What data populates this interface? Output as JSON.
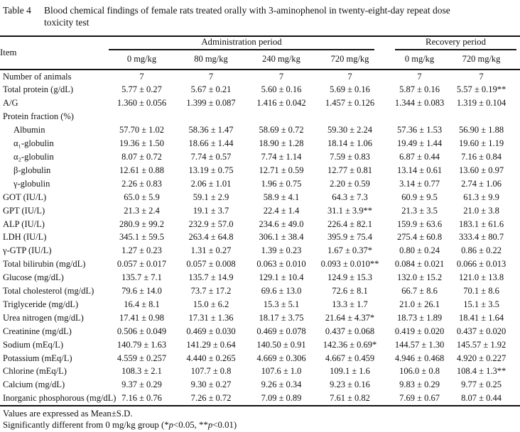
{
  "table": {
    "label": "Table 4",
    "title": "Blood chemical findings of female rats treated orally with 3-aminophenol in twenty-eight-day repeat dose",
    "title_line2": "toxicity test",
    "item_header": "Item",
    "group_headers": [
      {
        "label": "Administration period",
        "span": 4
      },
      {
        "label": "Recovery period",
        "span": 2
      }
    ],
    "dose_headers": [
      "0 mg/kg",
      "80 mg/kg",
      "240 mg/kg",
      "720 mg/kg",
      "0 mg/kg",
      "720 mg/kg"
    ],
    "rows": [
      {
        "item": "Number of animals",
        "indent": false,
        "values": [
          "7",
          "7",
          "7",
          "7",
          "7",
          "7"
        ]
      },
      {
        "item": "Total protein (g/dL)",
        "indent": false,
        "values": [
          "5.77 ± 0.27",
          "5.67 ± 0.21",
          "5.60 ± 0.16",
          "5.69 ± 0.16",
          "5.87 ± 0.16",
          "5.57 ± 0.19**"
        ]
      },
      {
        "item": "A/G",
        "indent": false,
        "values": [
          "1.360 ± 0.056",
          "1.399 ± 0.087",
          "1.416 ± 0.042",
          "1.457 ± 0.126",
          "1.344 ± 0.083",
          "1.319 ± 0.104"
        ]
      },
      {
        "item": "Protein fraction (%)",
        "indent": false,
        "section": true,
        "values": [
          "",
          "",
          "",
          "",
          "",
          ""
        ]
      },
      {
        "item": "Albumin",
        "indent": true,
        "values": [
          "57.70 ± 1.02",
          "58.36 ± 1.47",
          "58.69 ± 0.72",
          "59.30 ± 2.24",
          "57.36 ± 1.53",
          "56.90 ± 1.88"
        ]
      },
      {
        "item": "α₁-globulin",
        "indent": true,
        "values": [
          "19.36 ± 1.50",
          "18.66 ± 1.44",
          "18.90 ± 1.28",
          "18.14 ± 1.06",
          "19.49 ± 1.44",
          "19.60 ± 1.19"
        ]
      },
      {
        "item": "α₂-globulin",
        "indent": true,
        "values": [
          "8.07 ± 0.72",
          "7.74 ± 0.57",
          "7.74 ± 1.14",
          "7.59 ± 0.83",
          "6.87 ± 0.44",
          "7.16 ± 0.84"
        ]
      },
      {
        "item": "β-globulin",
        "indent": true,
        "values": [
          "12.61 ± 0.88",
          "13.19 ± 0.75",
          "12.71 ± 0.59",
          "12.77 ± 0.81",
          "13.14 ± 0.61",
          "13.60 ± 0.97"
        ]
      },
      {
        "item": "γ-globulin",
        "indent": true,
        "values": [
          "2.26 ± 0.83",
          "2.06 ± 1.01",
          "1.96 ± 0.75",
          "2.20 ± 0.59",
          "3.14 ± 0.77",
          "2.74 ± 1.06"
        ]
      },
      {
        "item": "GOT (IU/L)",
        "indent": false,
        "values": [
          "65.0 ± 5.9",
          "59.1 ± 2.9",
          "58.9 ± 4.1",
          "64.3 ± 7.3",
          "60.9 ± 9.5",
          "61.3 ± 9.9"
        ]
      },
      {
        "item": "GPT (IU/L)",
        "indent": false,
        "values": [
          "21.3 ± 2.4",
          "19.1 ± 3.7",
          "22.4 ± 1.4",
          "31.1 ± 3.9**",
          "21.3 ± 3.5",
          "21.0 ± 3.8"
        ]
      },
      {
        "item": "ALP (IU/L)",
        "indent": false,
        "values": [
          "280.9 ± 99.2",
          "232.9 ± 57.0",
          "234.6 ± 49.0",
          "226.4 ± 82.1",
          "159.9 ± 63.6",
          "183.1 ± 61.6"
        ]
      },
      {
        "item": "LDH (IU/L)",
        "indent": false,
        "values": [
          "345.1 ± 59.5",
          "263.4 ± 64.8",
          "306.1 ± 38.4",
          "395.9 ± 75.4",
          "275.4 ± 60.8",
          "333.4 ± 80.7"
        ]
      },
      {
        "item": "γ-GTP (IU/L)",
        "indent": false,
        "values": [
          "1.27 ± 0.23",
          "1.31 ± 0.27",
          "1.39 ± 0.23",
          "1.67 ± 0.37*",
          "0.80 ± 0.24",
          "0.86 ± 0.22"
        ]
      },
      {
        "item": "Total bilirubin (mg/dL)",
        "indent": false,
        "values": [
          "0.057 ± 0.017",
          "0.057 ± 0.008",
          "0.063 ± 0.010",
          "0.093 ± 0.010**",
          "0.084 ± 0.021",
          "0.066 ± 0.013"
        ]
      },
      {
        "item": "Glucose (mg/dL)",
        "indent": false,
        "values": [
          "135.7 ± 7.1",
          "135.7 ± 14.9",
          "129.1 ± 10.4",
          "124.9 ± 15.3",
          "132.0 ± 15.2",
          "121.0 ± 13.8"
        ]
      },
      {
        "item": "Total cholesterol (mg/dL)",
        "indent": false,
        "values": [
          "79.6 ± 14.0",
          "73.7 ± 17.2",
          "69.6 ± 13.0",
          "72.6 ± 8.1",
          "66.7 ± 8.6",
          "70.1 ± 8.6"
        ]
      },
      {
        "item": "Triglyceride (mg/dL)",
        "indent": false,
        "values": [
          "16.4 ± 8.1",
          "15.0 ± 6.2",
          "15.3 ± 5.1",
          "13.3 ± 1.7",
          "21.0 ± 26.1",
          "15.1 ± 3.5"
        ]
      },
      {
        "item": "Urea nitrogen (mg/dL)",
        "indent": false,
        "values": [
          "17.41 ± 0.98",
          "17.31 ± 1.36",
          "18.17 ± 3.75",
          "21.64 ± 4.37*",
          "18.73 ± 1.89",
          "18.41 ± 1.64"
        ]
      },
      {
        "item": "Creatinine (mg/dL)",
        "indent": false,
        "values": [
          "0.506 ± 0.049",
          "0.469 ± 0.030",
          "0.469 ± 0.078",
          "0.437 ± 0.068",
          "0.419 ± 0.020",
          "0.437 ± 0.020"
        ]
      },
      {
        "item": "Sodium (mEq/L)",
        "indent": false,
        "values": [
          "140.79 ± 1.63",
          "141.29 ± 0.64",
          "140.50 ± 0.91",
          "142.36 ± 0.69*",
          "144.57 ± 1.30",
          "145.57 ± 1.92"
        ]
      },
      {
        "item": "Potassium (mEq/L)",
        "indent": false,
        "values": [
          "4.559 ± 0.257",
          "4.440 ± 0.265",
          "4.669 ± 0.306",
          "4.667 ± 0.459",
          "4.946 ± 0.468",
          "4.920 ± 0.227"
        ]
      },
      {
        "item": "Chlorine (mEq/L)",
        "indent": false,
        "values": [
          "108.3 ± 2.1",
          "107.7 ± 0.8",
          "107.6 ± 1.0",
          "109.1 ± 1.6",
          "106.0 ± 0.8",
          "108.4 ± 1.3**"
        ]
      },
      {
        "item": "Calcium (mg/dL)",
        "indent": false,
        "values": [
          "9.37 ± 0.29",
          "9.30 ± 0.27",
          "9.26 ± 0.34",
          "9.23 ± 0.16",
          "9.83 ± 0.29",
          "9.77 ± 0.25"
        ]
      },
      {
        "item": "Inorganic phosphorous (mg/dL)",
        "indent": false,
        "values": [
          "7.16 ± 0.76",
          "7.26 ± 0.72",
          "7.09 ± 0.89",
          "7.61 ± 0.82",
          "7.69 ± 0.67",
          "8.07 ± 0.44"
        ]
      }
    ],
    "footnotes": {
      "mean_sd": "Values are expressed as Mean±S.D.",
      "significance_parts": [
        {
          "text": "Significantly different from 0 mg/kg group (*"
        },
        {
          "text": "p",
          "italic": true
        },
        {
          "text": "<0.05, **"
        },
        {
          "text": "p",
          "italic": true
        },
        {
          "text": "<0.01)"
        }
      ]
    }
  }
}
